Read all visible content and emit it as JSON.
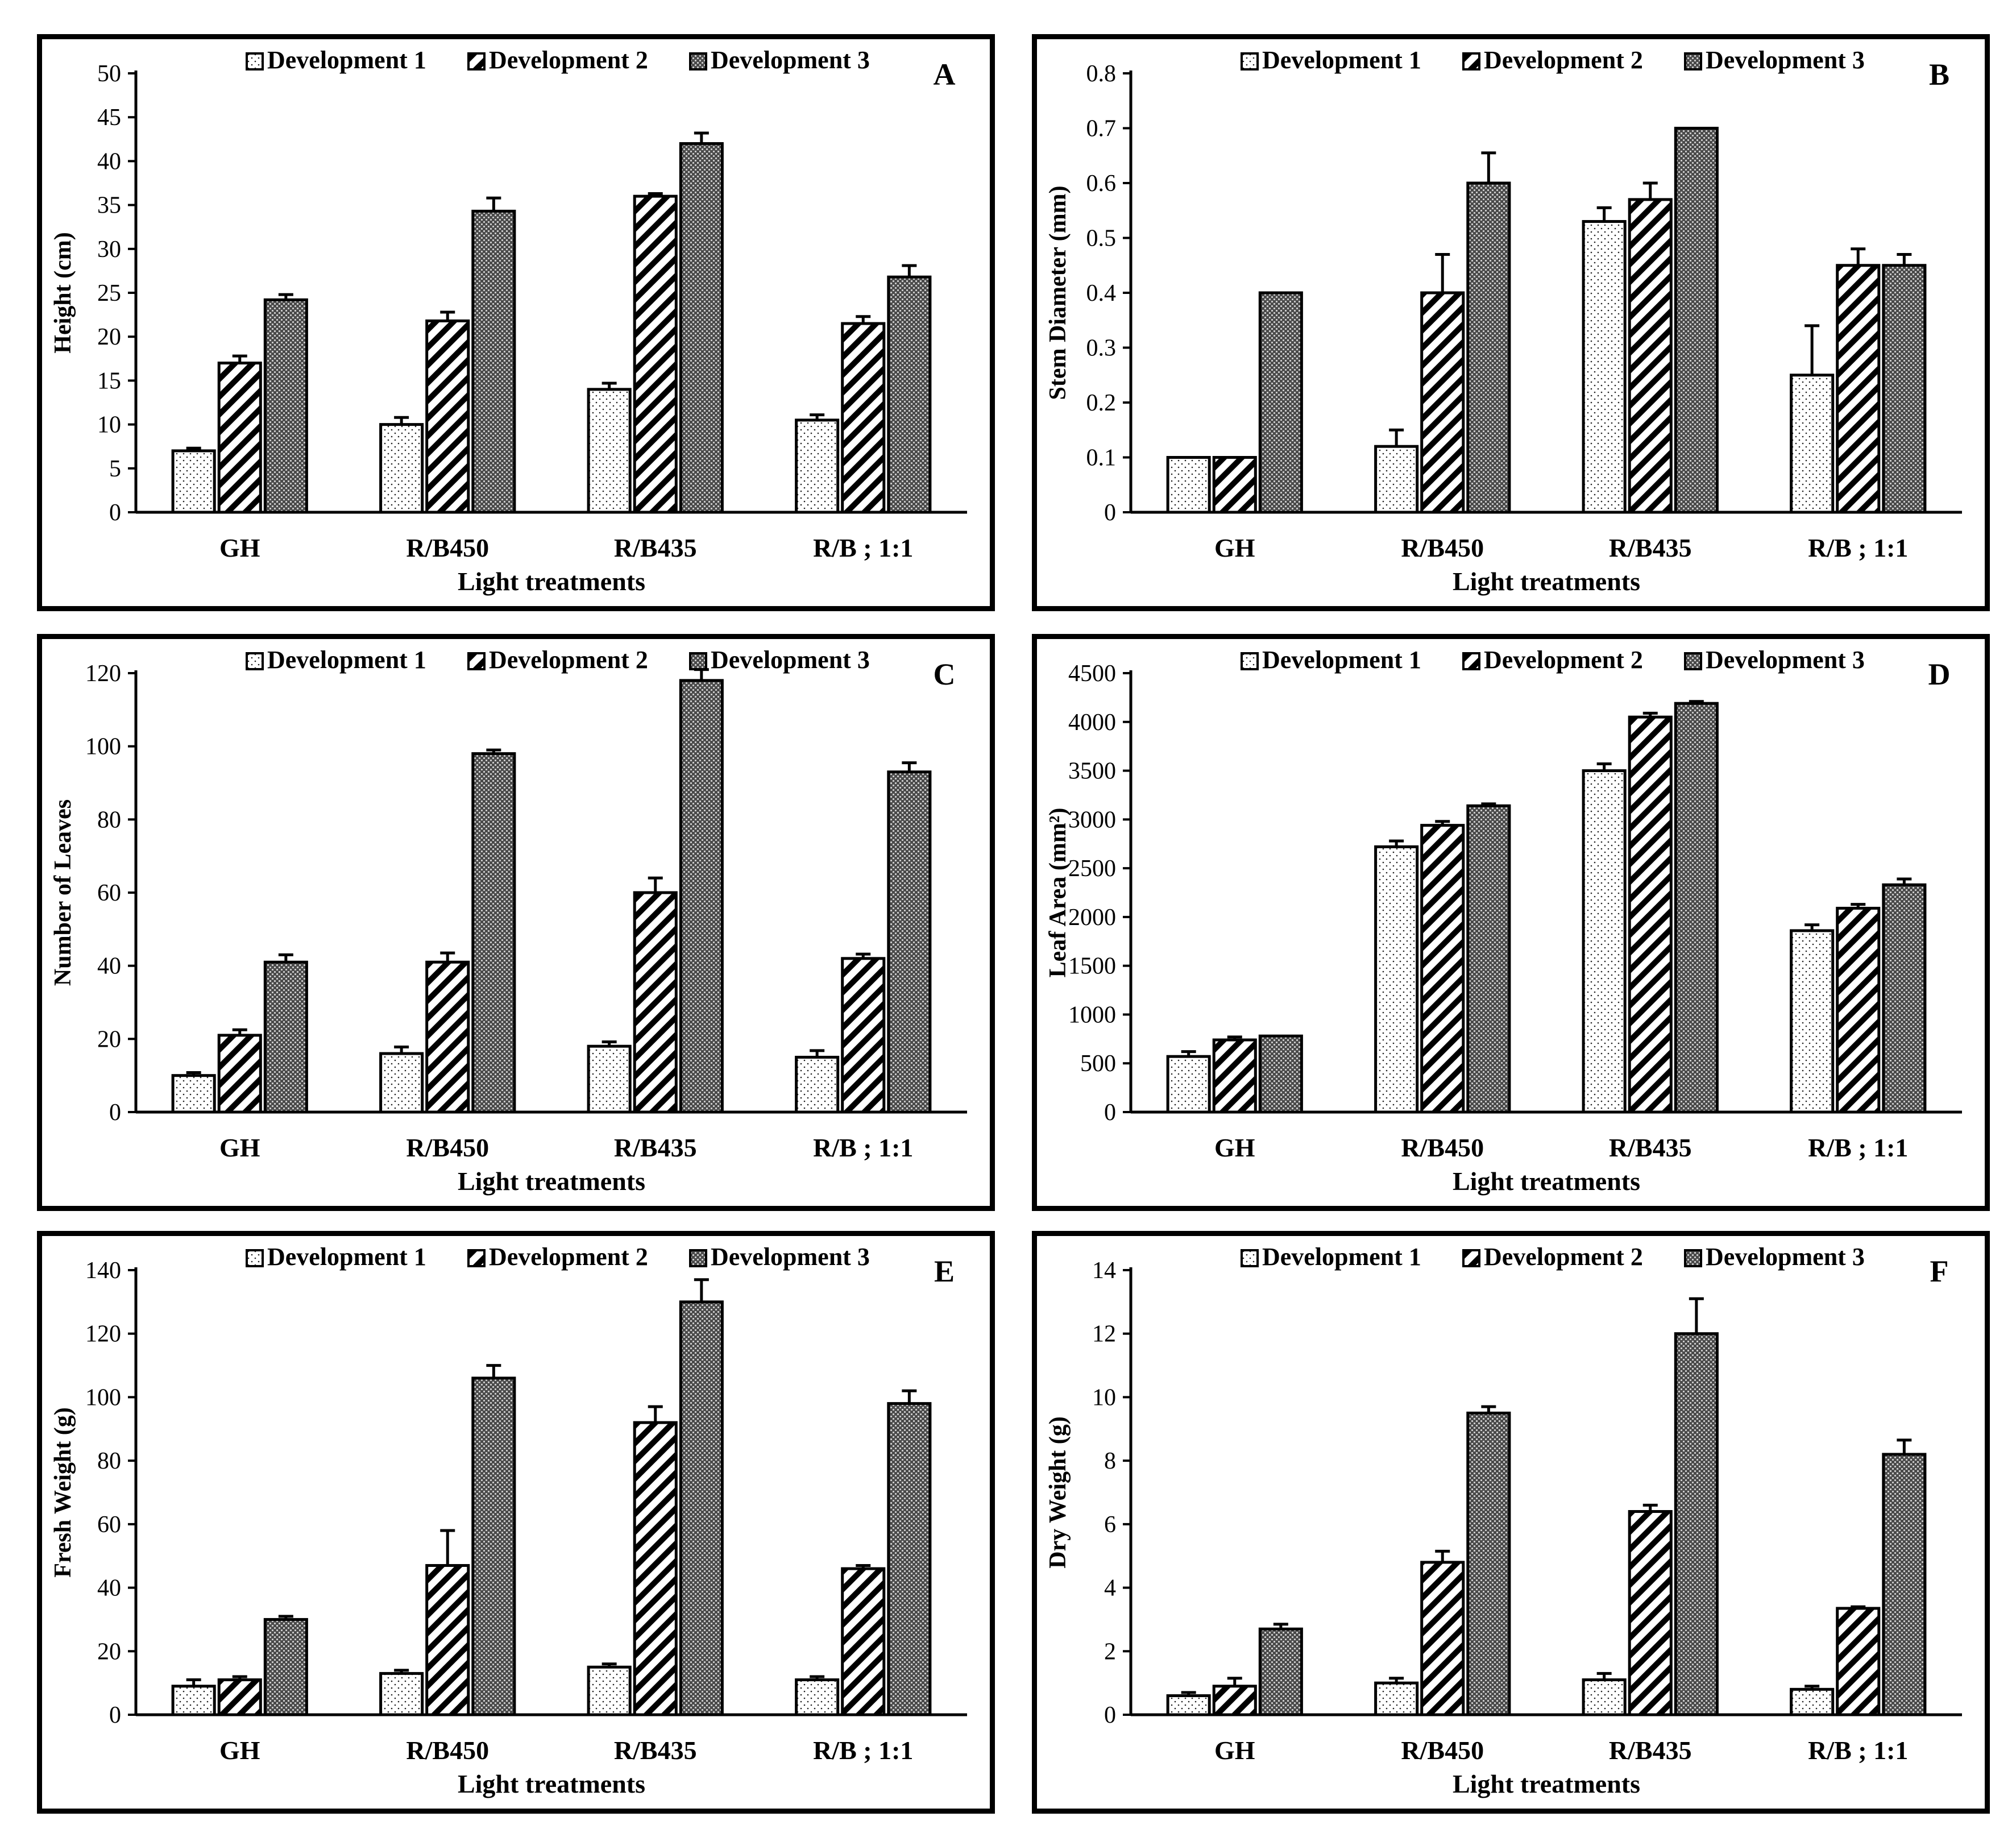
{
  "legend_labels": [
    "Development 1",
    "Development 2",
    "Development 3"
  ],
  "categories": [
    "GH",
    "R/B450",
    "R/B435",
    "R/B ; 1:1"
  ],
  "chart_data": [
    {
      "type": "bar",
      "panel": "A",
      "title": "",
      "xlabel": "Light treatments",
      "ylabel": "Height (cm)",
      "categories": [
        "GH",
        "R/B450",
        "R/B435",
        "R/B ; 1:1"
      ],
      "ylim": [
        0,
        50
      ],
      "yticks": [
        0,
        5,
        10,
        15,
        20,
        25,
        30,
        35,
        40,
        45,
        50
      ],
      "legend_position": "top",
      "series": [
        {
          "name": "Development 1",
          "values": [
            7.0,
            10.0,
            14.0,
            10.5
          ],
          "errors": [
            0.3,
            0.8,
            0.7,
            0.6
          ]
        },
        {
          "name": "Development 2",
          "values": [
            17.0,
            21.8,
            36.0,
            21.5
          ],
          "errors": [
            0.8,
            1.0,
            0.3,
            0.8
          ]
        },
        {
          "name": "Development 3",
          "values": [
            24.2,
            34.3,
            42.0,
            26.8
          ],
          "errors": [
            0.6,
            1.5,
            1.2,
            1.3
          ]
        }
      ]
    },
    {
      "type": "bar",
      "panel": "B",
      "title": "",
      "xlabel": "Light treatments",
      "ylabel": "Stem Diameter (mm)",
      "categories": [
        "GH",
        "R/B450",
        "R/B435",
        "R/B ; 1:1"
      ],
      "ylim": [
        0,
        0.8
      ],
      "yticks": [
        0,
        0.1,
        0.2,
        0.3,
        0.4,
        0.5,
        0.6,
        0.7,
        0.8
      ],
      "legend_position": "top",
      "series": [
        {
          "name": "Development 1",
          "values": [
            0.1,
            0.12,
            0.53,
            0.25
          ],
          "errors": [
            0,
            0.03,
            0.025,
            0.09
          ]
        },
        {
          "name": "Development 2",
          "values": [
            0.1,
            0.4,
            0.57,
            0.45
          ],
          "errors": [
            0,
            0.07,
            0.03,
            0.03
          ]
        },
        {
          "name": "Development 3",
          "values": [
            0.4,
            0.6,
            0.7,
            0.45
          ],
          "errors": [
            0,
            0.055,
            0,
            0.02
          ]
        }
      ]
    },
    {
      "type": "bar",
      "panel": "C",
      "title": "",
      "xlabel": "Light treatments",
      "ylabel": "Number of Leaves",
      "categories": [
        "GH",
        "R/B450",
        "R/B435",
        "R/B ; 1:1"
      ],
      "ylim": [
        0,
        120
      ],
      "yticks": [
        0,
        20,
        40,
        60,
        80,
        100,
        120
      ],
      "legend_position": "top",
      "series": [
        {
          "name": "Development 1",
          "values": [
            10,
            16,
            18,
            15
          ],
          "errors": [
            0.8,
            1.8,
            1.2,
            1.8
          ]
        },
        {
          "name": "Development 2",
          "values": [
            21,
            41,
            60,
            42
          ],
          "errors": [
            1.5,
            2.5,
            4,
            1.2
          ]
        },
        {
          "name": "Development 3",
          "values": [
            41,
            98,
            118,
            93
          ],
          "errors": [
            2,
            1,
            3,
            2.5
          ]
        }
      ]
    },
    {
      "type": "bar",
      "panel": "D",
      "title": "",
      "xlabel": "Light treatments",
      "ylabel": "Leaf Area (mm²)",
      "categories": [
        "GH",
        "R/B450",
        "R/B435",
        "R/B ; 1:1"
      ],
      "ylim": [
        0,
        4500
      ],
      "yticks": [
        0,
        500,
        1000,
        1500,
        2000,
        2500,
        3000,
        3500,
        4000,
        4500
      ],
      "legend_position": "top",
      "series": [
        {
          "name": "Development 1",
          "values": [
            570,
            2720,
            3500,
            1860
          ],
          "errors": [
            50,
            60,
            70,
            60
          ]
        },
        {
          "name": "Development 2",
          "values": [
            740,
            2940,
            4050,
            2090
          ],
          "errors": [
            30,
            40,
            40,
            40
          ]
        },
        {
          "name": "Development 3",
          "values": [
            780,
            3140,
            4190,
            2330
          ],
          "errors": [
            0,
            20,
            20,
            60
          ]
        }
      ]
    },
    {
      "type": "bar",
      "panel": "E",
      "title": "",
      "xlabel": "Light treatments",
      "ylabel": "Fresh Weight (g)",
      "categories": [
        "GH",
        "R/B450",
        "R/B435",
        "R/B ; 1:1"
      ],
      "ylim": [
        0,
        140
      ],
      "yticks": [
        0,
        20,
        40,
        60,
        80,
        100,
        120,
        140
      ],
      "legend_position": "top",
      "series": [
        {
          "name": "Development 1",
          "values": [
            9,
            13,
            15,
            11
          ],
          "errors": [
            2,
            1,
            1,
            1
          ]
        },
        {
          "name": "Development 2",
          "values": [
            11,
            47,
            92,
            46
          ],
          "errors": [
            1,
            11,
            5,
            1
          ]
        },
        {
          "name": "Development 3",
          "values": [
            30,
            106,
            130,
            98
          ],
          "errors": [
            1,
            4,
            7,
            4
          ]
        }
      ]
    },
    {
      "type": "bar",
      "panel": "F",
      "title": "",
      "xlabel": "Light treatments",
      "ylabel": "Dry Weight (g)",
      "categories": [
        "GH",
        "R/B450",
        "R/B435",
        "R/B ; 1:1"
      ],
      "ylim": [
        0,
        14
      ],
      "yticks": [
        0,
        2,
        4,
        6,
        8,
        10,
        12,
        14
      ],
      "legend_position": "top",
      "series": [
        {
          "name": "Development 1",
          "values": [
            0.6,
            1.0,
            1.1,
            0.8
          ],
          "errors": [
            0.1,
            0.15,
            0.2,
            0.1
          ]
        },
        {
          "name": "Development 2",
          "values": [
            0.9,
            4.8,
            6.4,
            3.35
          ],
          "errors": [
            0.25,
            0.35,
            0.2,
            0.05
          ]
        },
        {
          "name": "Development 3",
          "values": [
            2.7,
            9.5,
            12.0,
            8.2
          ],
          "errors": [
            0.15,
            0.2,
            1.1,
            0.45
          ]
        }
      ]
    }
  ]
}
